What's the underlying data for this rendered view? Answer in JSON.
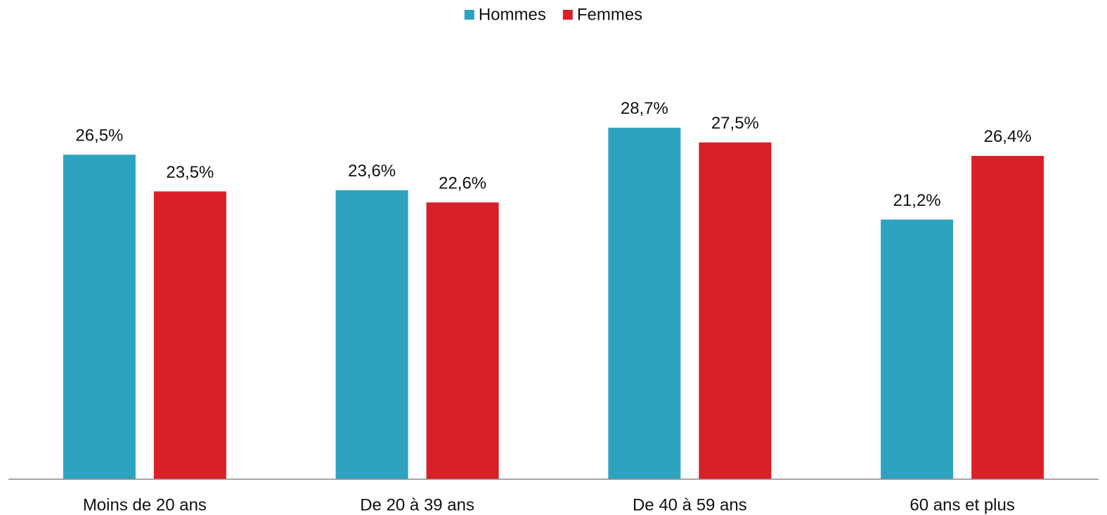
{
  "chart_data": {
    "type": "bar",
    "categories": [
      "Moins de 20 ans",
      "De 20 à 39 ans",
      "De 40 à 59 ans",
      "60 ans et plus"
    ],
    "series": [
      {
        "name": "Hommes",
        "color": "#2ea3c0",
        "values": [
          26.5,
          23.6,
          28.7,
          21.2
        ],
        "value_labels": [
          "26,5%",
          "23,6%",
          "28,7%",
          "21,2%"
        ]
      },
      {
        "name": "Femmes",
        "color": "#da1f28",
        "values": [
          23.5,
          22.6,
          27.5,
          26.4
        ],
        "value_labels": [
          "23,5%",
          "22,6%",
          "27,5%",
          "26,4%"
        ]
      }
    ],
    "ylim": [
      0,
      35
    ],
    "legend": "top"
  }
}
